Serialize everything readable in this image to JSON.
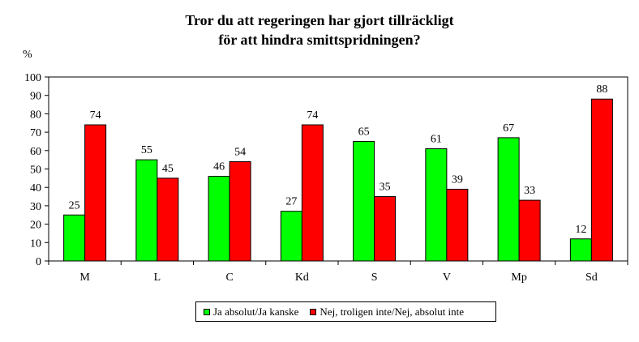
{
  "chart_data": {
    "type": "bar",
    "title_line1": "Tror du att regeringen har gjort tillräckligt",
    "title_line2": "för att hindra smittspridningen?",
    "ylabel": "%",
    "ylim": [
      0,
      100
    ],
    "yticks": [
      "0",
      "10",
      "20",
      "30",
      "40",
      "50",
      "60",
      "70",
      "80",
      "90",
      "100"
    ],
    "categories": [
      "M",
      "L",
      "C",
      "Kd",
      "S",
      "V",
      "Mp",
      "Sd"
    ],
    "series": [
      {
        "name": "Ja absolut/Ja kanske",
        "color": "#00ff00",
        "values": [
          25,
          55,
          46,
          27,
          65,
          61,
          67,
          12
        ]
      },
      {
        "name": "Nej, troligen inte/Nej, absolut inte",
        "color": "#ff0000",
        "values": [
          74,
          45,
          54,
          74,
          35,
          39,
          33,
          88
        ]
      }
    ],
    "grid": false,
    "legend_position": "bottom-center"
  }
}
